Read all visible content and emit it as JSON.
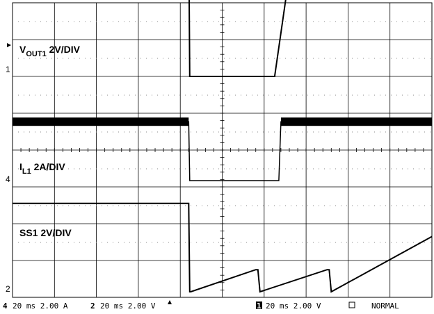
{
  "chart_data": {
    "type": "line",
    "title": "",
    "xlabel": "",
    "ylabel": "",
    "x_divisions": 10,
    "y_divisions": 8,
    "grid": true,
    "time_per_div_ms": 20,
    "xlim": [
      0,
      200
    ],
    "series": [
      {
        "name": "V_OUT1 2V/DIV",
        "channel": 1,
        "units": "V",
        "volts_per_div": 2,
        "x": [
          0,
          84,
          84.5,
          125,
          135,
          160,
          200
        ],
        "y": [
          7.9,
          7.9,
          0,
          0,
          7.9,
          7.9,
          7.9
        ]
      },
      {
        "name": "I_L1 2A/DIV",
        "channel": 4,
        "units": "A",
        "amps_per_div": 2,
        "x": [
          0,
          84,
          84.5,
          127,
          128,
          150,
          200
        ],
        "y": [
          3.2,
          3.2,
          0,
          0,
          3.2,
          3.2,
          3.2
        ]
      },
      {
        "name": "SS1 2V/DIV",
        "channel": 2,
        "units": "V",
        "volts_per_div": 2,
        "x": [
          0,
          84,
          84.5,
          85,
          116,
          117,
          118,
          150,
          151,
          152,
          200
        ],
        "y": [
          4.8,
          4.8,
          0,
          0,
          1.2,
          1.2,
          0,
          1.2,
          1.2,
          0,
          3.0
        ]
      }
    ]
  },
  "labels": {
    "ch1": {
      "main": "V",
      "sub": "OUT1",
      "rest": " 2V/DIV"
    },
    "ch4": {
      "main": "I",
      "sub": "L1",
      "rest": " 2A/DIV"
    },
    "ch2": {
      "text": "SS1 2V/DIV"
    }
  },
  "markers": {
    "ch1": "1",
    "ch4": "4",
    "ch2": "2"
  },
  "status_bar": {
    "ch4_num": "4",
    "ch4_text": "20 ms 2.00 A",
    "ch2_num": "2",
    "ch2_text": "20 ms 2.00 V",
    "ch1_num": "1",
    "ch1_text": "20 ms 2.00 V",
    "mode": "NORMAL"
  }
}
